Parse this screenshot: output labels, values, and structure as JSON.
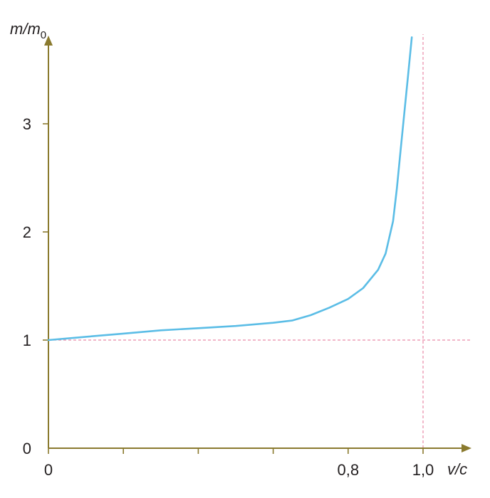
{
  "chart_data": {
    "type": "line",
    "xlabel": "v/c",
    "ylabel": "m/m",
    "ylabel_subscript": "0",
    "xlim": [
      0,
      1.1
    ],
    "ylim": [
      0,
      3.8
    ],
    "x_ticks": [
      {
        "value": 0,
        "label": "0"
      },
      {
        "value": 0.2,
        "label": ""
      },
      {
        "value": 0.4,
        "label": ""
      },
      {
        "value": 0.6,
        "label": ""
      },
      {
        "value": 0.8,
        "label": "0,8"
      },
      {
        "value": 1.0,
        "label": "1,0"
      }
    ],
    "y_ticks": [
      {
        "value": 0,
        "label": "0"
      },
      {
        "value": 1,
        "label": "1"
      },
      {
        "value": 2,
        "label": "2"
      },
      {
        "value": 3,
        "label": "3"
      }
    ],
    "reference_lines": [
      {
        "orientation": "horizontal",
        "value": 1
      },
      {
        "orientation": "vertical",
        "value": 1.0
      }
    ],
    "series": [
      {
        "x": [
          0,
          0.1,
          0.2,
          0.3,
          0.4,
          0.5,
          0.6,
          0.65,
          0.7,
          0.75,
          0.8,
          0.84,
          0.88,
          0.9,
          0.92,
          0.93,
          0.94,
          0.95,
          0.96,
          0.97
        ],
        "y": [
          1.0,
          1.03,
          1.06,
          1.09,
          1.11,
          1.13,
          1.16,
          1.18,
          1.23,
          1.3,
          1.38,
          1.48,
          1.65,
          1.8,
          2.1,
          2.4,
          2.75,
          3.1,
          3.45,
          3.8
        ]
      }
    ],
    "colors": {
      "axis": "#8a7a2e",
      "curve": "#5bbde6",
      "reference": "#e98aa6",
      "text": "#231f20"
    }
  }
}
